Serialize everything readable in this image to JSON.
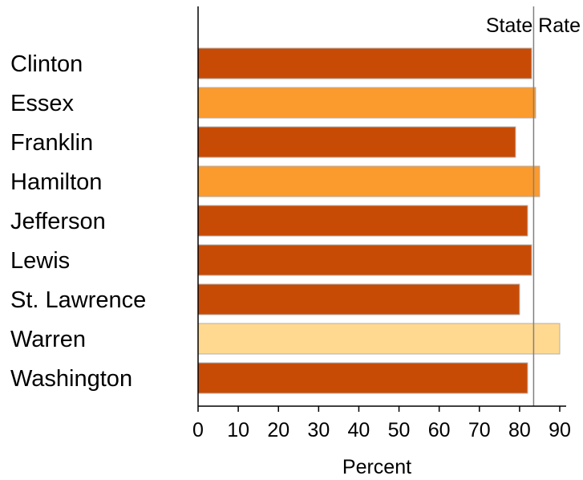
{
  "chart_data": {
    "type": "bar",
    "orientation": "horizontal",
    "categories": [
      "Clinton",
      "Essex",
      "Franklin",
      "Hamilton",
      "Jefferson",
      "Lewis",
      "St. Lawrence",
      "Warren",
      "Washington"
    ],
    "values": [
      83,
      84,
      79,
      85,
      82,
      83,
      80,
      90,
      82
    ],
    "bar_colors": [
      "#C84B05",
      "#FB9A2D",
      "#C84B05",
      "#FB9A2D",
      "#C84B05",
      "#C84B05",
      "#C84B05",
      "#FFD990",
      "#C84B05"
    ],
    "xlabel": "Percent",
    "xlim": [
      0,
      90
    ],
    "xticks": [
      0,
      10,
      20,
      30,
      40,
      50,
      60,
      70,
      80,
      90
    ],
    "reference_line": {
      "label": "State Rate",
      "value": 83.5,
      "color": "#808080"
    },
    "grid": false,
    "legend": "none"
  }
}
